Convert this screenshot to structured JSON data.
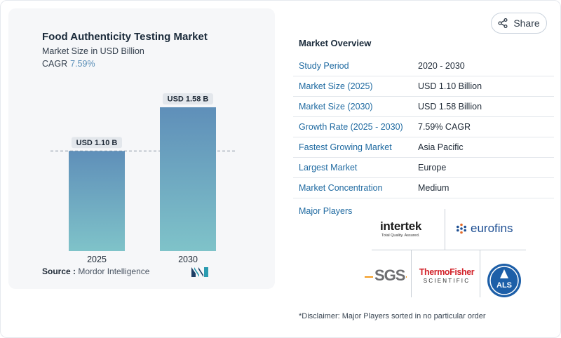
{
  "chart": {
    "title": "Food Authenticity Testing Market",
    "subtitle": "Market Size in USD Billion",
    "cagr_label": "CAGR",
    "cagr_value": "7.59%",
    "source_label": "Source :",
    "source_value": "Mordor Intelligence"
  },
  "chart_data": {
    "type": "bar",
    "categories": [
      "2025",
      "2030"
    ],
    "values": [
      1.1,
      1.58
    ],
    "data_labels": [
      "USD 1.10 B",
      "USD 1.58 B"
    ],
    "title": "Food Authenticity Testing Market",
    "subtitle": "Market Size in USD Billion",
    "ylim": [
      0,
      1.58
    ],
    "grid": false,
    "reference_line": 1.1,
    "bar_gradient": [
      "#5f8fb9",
      "#7fc3c9"
    ]
  },
  "share": {
    "label": "Share",
    "icon": "share-icon"
  },
  "overview": {
    "title": "Market Overview",
    "rows": [
      {
        "key": "Study Period",
        "value": "2020 - 2030"
      },
      {
        "key": "Market Size (2025)",
        "value": "USD 1.10 Billion"
      },
      {
        "key": "Market Size (2030)",
        "value": "USD 1.58 Billion"
      },
      {
        "key": "Growth Rate (2025 - 2030)",
        "value": "7.59% CAGR"
      },
      {
        "key": "Fastest Growing Market",
        "value": "Asia Pacific"
      },
      {
        "key": "Largest Market",
        "value": "Europe"
      },
      {
        "key": "Market Concentration",
        "value": "Medium"
      }
    ]
  },
  "players": {
    "title": "Major Players",
    "logos": [
      {
        "name": "intertek",
        "tagline": "Total Quality. Assured."
      },
      {
        "name": "eurofins"
      },
      {
        "name": "SGS"
      },
      {
        "name": "ThermoFisher",
        "line2": "SCIENTIFIC"
      },
      {
        "name": "ALS"
      }
    ]
  },
  "disclaimer": "*Disclaimer: Major Players sorted in no particular order",
  "colors": {
    "accent": "#1f6aa1",
    "bar_top": "#5f8fb9",
    "bar_bottom": "#7fc3c9",
    "thermo_red": "#d2232a",
    "eurofins_blue": "#1e4f93",
    "als_blue": "#1d5fa8"
  }
}
